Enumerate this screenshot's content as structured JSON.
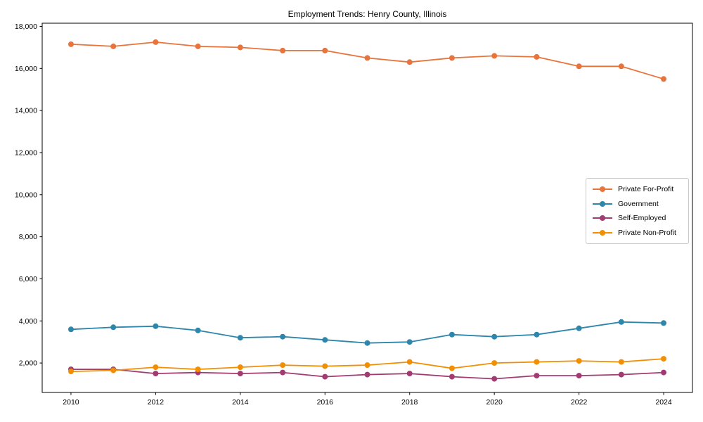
{
  "chart_data": {
    "type": "line",
    "title": "Employment Trends: Henry County, Illinois",
    "xlabel": "",
    "ylabel": "",
    "x": [
      2010,
      2011,
      2012,
      2013,
      2014,
      2015,
      2016,
      2017,
      2018,
      2019,
      2020,
      2021,
      2022,
      2023,
      2024
    ],
    "series": [
      {
        "name": "Private For-Profit",
        "color": "#E8743B",
        "values": [
          17150,
          17050,
          17250,
          17050,
          17000,
          16850,
          16850,
          16500,
          16300,
          16500,
          16600,
          16550,
          16100,
          16100,
          15500
        ]
      },
      {
        "name": "Government",
        "color": "#2E86AB",
        "values": [
          3600,
          3700,
          3750,
          3550,
          3200,
          3250,
          3100,
          2950,
          3000,
          3350,
          3250,
          3350,
          3650,
          3950,
          3900
        ]
      },
      {
        "name": "Self-Employed",
        "color": "#A23B72",
        "values": [
          1700,
          1700,
          1500,
          1550,
          1500,
          1550,
          1350,
          1450,
          1500,
          1350,
          1250,
          1400,
          1400,
          1450,
          1550
        ]
      },
      {
        "name": "Private Non-Profit",
        "color": "#F18F01",
        "values": [
          1600,
          1650,
          1800,
          1700,
          1800,
          1900,
          1850,
          1900,
          2050,
          1750,
          2000,
          2050,
          2100,
          2050,
          2200
        ]
      }
    ],
    "yticks": [
      2000,
      4000,
      6000,
      8000,
      10000,
      12000,
      14000,
      16000,
      18000
    ],
    "xticks": [
      2010,
      2012,
      2014,
      2016,
      2018,
      2020,
      2022,
      2024
    ],
    "ylim": [
      600,
      18150
    ],
    "xlim": [
      2009.32,
      2024.68
    ],
    "grid": false,
    "legend_position": "center right",
    "marker": "circle",
    "axis_color": "#000000",
    "background_color": "#ffffff"
  }
}
